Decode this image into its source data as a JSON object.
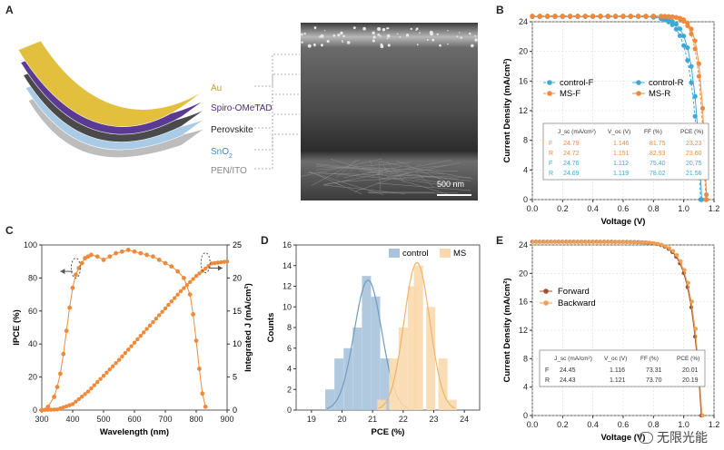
{
  "panel_labels": {
    "a": "A",
    "b": "B",
    "c": "C",
    "d": "D",
    "e": "E"
  },
  "layers": [
    {
      "label": "Au",
      "color": "#e2bf3c",
      "text_color": "#c9a21f"
    },
    {
      "label": "Spiro-OMeTAD",
      "color": "#5a3a92",
      "text_color": "#4a2d86"
    },
    {
      "label": "Perovskite",
      "color": "#4a4a4a",
      "text_color": "#222222"
    },
    {
      "label": "SnO",
      "sub": "2",
      "color": "#a9cbe6",
      "text_color": "#3b8fc7"
    },
    {
      "label": "PEN/ITO",
      "color": "#bdbdbd",
      "text_color": "#888888"
    }
  ],
  "sem": {
    "scale_bar": "500 nm"
  },
  "watermark": {
    "text": "无限光能"
  },
  "chart_data": [
    {
      "id": "B",
      "type": "line",
      "xlabel": "Voltage (V)",
      "ylabel": "Current Density (mA/cm²)",
      "xlim": [
        0,
        1.2
      ],
      "ylim": [
        0,
        24
      ],
      "xticks": [
        "0.0",
        "0.2",
        "0.4",
        "0.6",
        "0.8",
        "1.0",
        "1.2"
      ],
      "yticks": [
        "0",
        "4",
        "8",
        "12",
        "16",
        "20",
        "24"
      ],
      "legend": {
        "placement": "upper",
        "entries": [
          {
            "label": "control-F",
            "color": "#3fa9d6",
            "marker": "circle",
            "line": "dashed"
          },
          {
            "label": "control-R",
            "color": "#3fa9d6",
            "marker": "circle",
            "line": "solid"
          },
          {
            "label": "MS-F",
            "color": "#f08a3a",
            "marker": "circle",
            "line": "dashed"
          },
          {
            "label": "MS-R",
            "color": "#f08a3a",
            "marker": "circle",
            "line": "solid"
          }
        ]
      },
      "series": [
        {
          "name": "control-F",
          "color": "#3fa9d6",
          "dashed": true,
          "jsc": 24.76,
          "voc": 1.112,
          "ff": 75.4
        },
        {
          "name": "control-R",
          "color": "#3fa9d6",
          "dashed": false,
          "jsc": 24.69,
          "voc": 1.119,
          "ff": 78.02
        },
        {
          "name": "MS-F",
          "color": "#f08a3a",
          "dashed": true,
          "jsc": 24.79,
          "voc": 1.146,
          "ff": 81.75
        },
        {
          "name": "MS-R",
          "color": "#f08a3a",
          "dashed": false,
          "jsc": 24.72,
          "voc": 1.151,
          "ff": 82.93
        }
      ],
      "table": {
        "headers": [
          "J_sc (mA/cm²)",
          "V_oc (V)",
          "FF (%)",
          "PCE (%)"
        ],
        "rows": [
          {
            "dir": "F",
            "color": "#f08a3a",
            "values": [
              "24.79",
              "1.146",
              "81.75",
              "23.23"
            ]
          },
          {
            "dir": "R",
            "color": "#f08a3a",
            "values": [
              "24.72",
              "1.151",
              "82.93",
              "23.60"
            ]
          },
          {
            "dir": "F",
            "color": "#3fa9d6",
            "values": [
              "24.76",
              "1.112",
              "75.40",
              "20.75"
            ]
          },
          {
            "dir": "R",
            "color": "#3fa9d6",
            "values": [
              "24.69",
              "1.119",
              "78.02",
              "21.56"
            ]
          }
        ]
      }
    },
    {
      "id": "C",
      "type": "line",
      "xlabel": "Wavelength (nm)",
      "ylabel": "IPCE (%)",
      "y2label": "Integrated J (mA/cm²)",
      "xlim": [
        300,
        900
      ],
      "ylim": [
        0,
        100
      ],
      "y2lim": [
        0,
        25
      ],
      "xticks": [
        "300",
        "400",
        "500",
        "600",
        "700",
        "800",
        "900"
      ],
      "yticks": [
        "0",
        "20",
        "40",
        "60",
        "80",
        "100"
      ],
      "y2ticks": [
        "0",
        "5",
        "10",
        "15",
        "20",
        "25"
      ],
      "color": "#f08a3a",
      "ipce": {
        "x": [
          300,
          320,
          340,
          350,
          360,
          370,
          380,
          390,
          400,
          410,
          420,
          430,
          440,
          450,
          460,
          480,
          500,
          520,
          540,
          560,
          580,
          600,
          620,
          640,
          660,
          680,
          700,
          720,
          740,
          760,
          780,
          790,
          800,
          810,
          820,
          830
        ],
        "y": [
          0,
          2,
          8,
          14,
          22,
          34,
          48,
          62,
          74,
          82,
          86,
          89,
          92,
          93,
          94,
          93,
          91,
          93,
          95,
          96,
          97,
          96,
          95,
          94,
          93,
          91,
          89,
          87,
          84,
          80,
          70,
          58,
          42,
          25,
          10,
          2
        ]
      },
      "integrated": {
        "x": [
          300,
          350,
          400,
          450,
          500,
          550,
          600,
          650,
          700,
          750,
          800,
          850,
          900
        ],
        "y": [
          0,
          0.1,
          0.9,
          2.8,
          5.2,
          7.6,
          10.2,
          12.8,
          15.4,
          18.0,
          20.3,
          22.2,
          22.5
        ]
      }
    },
    {
      "id": "D",
      "type": "bar",
      "xlabel": "PCE (%)",
      "ylabel": "Counts",
      "xlim": [
        18.5,
        24.5
      ],
      "ylim": [
        0,
        16
      ],
      "xticks": [
        "19",
        "20",
        "21",
        "22",
        "23",
        "24"
      ],
      "yticks": [
        "0",
        "2",
        "4",
        "6",
        "8",
        "10",
        "12",
        "14",
        "16"
      ],
      "legend": {
        "placement": "top-right"
      },
      "series": [
        {
          "name": "control",
          "color": "#6f9cc4",
          "fill": "#a9c3dc",
          "centers": [
            19.6,
            19.9,
            20.2,
            20.5,
            20.8,
            21.1,
            21.4
          ],
          "values": [
            2,
            5,
            6,
            8,
            13,
            11,
            5
          ],
          "fit_mu": 20.85,
          "fit_sigma": 0.45,
          "fit_peak": 12.6
        },
        {
          "name": "MS",
          "color": "#f2b36b",
          "fill": "#fad8ad",
          "centers": [
            21.3,
            21.7,
            22.0,
            22.3,
            22.5,
            22.9,
            23.3,
            23.6
          ],
          "values": [
            1,
            5,
            8,
            12,
            14,
            10,
            5,
            1
          ],
          "fit_mu": 22.45,
          "fit_sigma": 0.42,
          "fit_peak": 14.3
        }
      ]
    },
    {
      "id": "E",
      "type": "line",
      "xlabel": "Voltage (V)",
      "ylabel": "Current Density (mA/cm²)",
      "xlim": [
        0,
        1.2
      ],
      "ylim": [
        0,
        24
      ],
      "xticks": [
        "0.0",
        "0.2",
        "0.4",
        "0.6",
        "0.8",
        "1.0",
        "1.2"
      ],
      "yticks": [
        "0",
        "4",
        "8",
        "12",
        "16",
        "20",
        "24"
      ],
      "series": [
        {
          "name": "Forward",
          "color": "#a0522d",
          "jsc": 24.45,
          "voc": 1.116,
          "ff": 73.31
        },
        {
          "name": "Backward",
          "color": "#f0a050",
          "jsc": 24.43,
          "voc": 1.121,
          "ff": 73.7
        }
      ],
      "table": {
        "headers": [
          "J_sc (mA/cm²)",
          "V_oc (V)",
          "FF (%)",
          "PCE (%)"
        ],
        "rows": [
          {
            "dir": "F",
            "values": [
              "24.45",
              "1.116",
              "73.31",
              "20.01"
            ]
          },
          {
            "dir": "R",
            "values": [
              "24.43",
              "1.121",
              "73.70",
              "20.19"
            ]
          }
        ]
      }
    }
  ]
}
